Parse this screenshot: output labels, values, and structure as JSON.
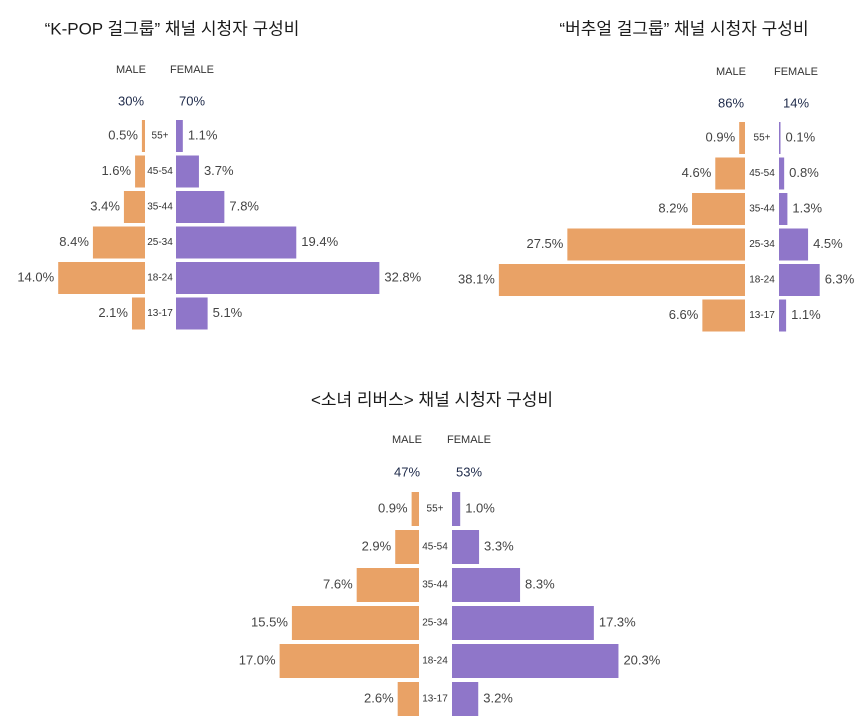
{
  "colors": {
    "male": "#e9a266",
    "female": "#8f76c9"
  },
  "chart_data": [
    {
      "type": "bar",
      "orientation": "population-pyramid",
      "title": "“K-POP 걸그룹” 채널 시청자 구성비",
      "male_label": "MALE",
      "female_label": "FEMALE",
      "male_total": "30%",
      "female_total": "70%",
      "categories": [
        "55+",
        "45-54",
        "35-44",
        "25-34",
        "18-24",
        "13-17"
      ],
      "series": [
        {
          "name": "MALE",
          "values": [
            0.5,
            1.6,
            3.4,
            8.4,
            14.0,
            2.1
          ],
          "labels": [
            "0.5%",
            "1.6%",
            "3.4%",
            "8.4%",
            "14.0%",
            "2.1%"
          ]
        },
        {
          "name": "FEMALE",
          "values": [
            1.1,
            3.7,
            7.8,
            19.4,
            32.8,
            5.1
          ],
          "labels": [
            "1.1%",
            "3.7%",
            "7.8%",
            "19.4%",
            "32.8%",
            "5.1%"
          ]
        }
      ]
    },
    {
      "type": "bar",
      "orientation": "population-pyramid",
      "title": "“버추얼 걸그룹” 채널 시청자 구성비",
      "male_label": "MALE",
      "female_label": "FEMALE",
      "male_total": "86%",
      "female_total": "14%",
      "categories": [
        "55+",
        "45-54",
        "35-44",
        "25-34",
        "18-24",
        "13-17"
      ],
      "series": [
        {
          "name": "MALE",
          "values": [
            0.9,
            4.6,
            8.2,
            27.5,
            38.1,
            6.6
          ],
          "labels": [
            "0.9%",
            "4.6%",
            "8.2%",
            "27.5%",
            "38.1%",
            "6.6%"
          ]
        },
        {
          "name": "FEMALE",
          "values": [
            0.1,
            0.8,
            1.3,
            4.5,
            6.3,
            1.1
          ],
          "labels": [
            "0.1%",
            "0.8%",
            "1.3%",
            "4.5%",
            "6.3%",
            "1.1%"
          ]
        }
      ]
    },
    {
      "type": "bar",
      "orientation": "population-pyramid",
      "title": "<소녀 리버스> 채널 시청자 구성비",
      "male_label": "MALE",
      "female_label": "FEMALE",
      "male_total": "47%",
      "female_total": "53%",
      "categories": [
        "55+",
        "45-54",
        "35-44",
        "25-34",
        "18-24",
        "13-17"
      ],
      "series": [
        {
          "name": "MALE",
          "values": [
            0.9,
            2.9,
            7.6,
            15.5,
            17.0,
            2.6
          ],
          "labels": [
            "0.9%",
            "2.9%",
            "7.6%",
            "15.5%",
            "17.0%",
            "2.6%"
          ]
        },
        {
          "name": "FEMALE",
          "values": [
            1.0,
            3.3,
            8.3,
            17.3,
            20.3,
            3.2
          ],
          "labels": [
            "1.0%",
            "3.3%",
            "8.3%",
            "17.3%",
            "20.3%",
            "3.2%"
          ]
        }
      ]
    }
  ]
}
